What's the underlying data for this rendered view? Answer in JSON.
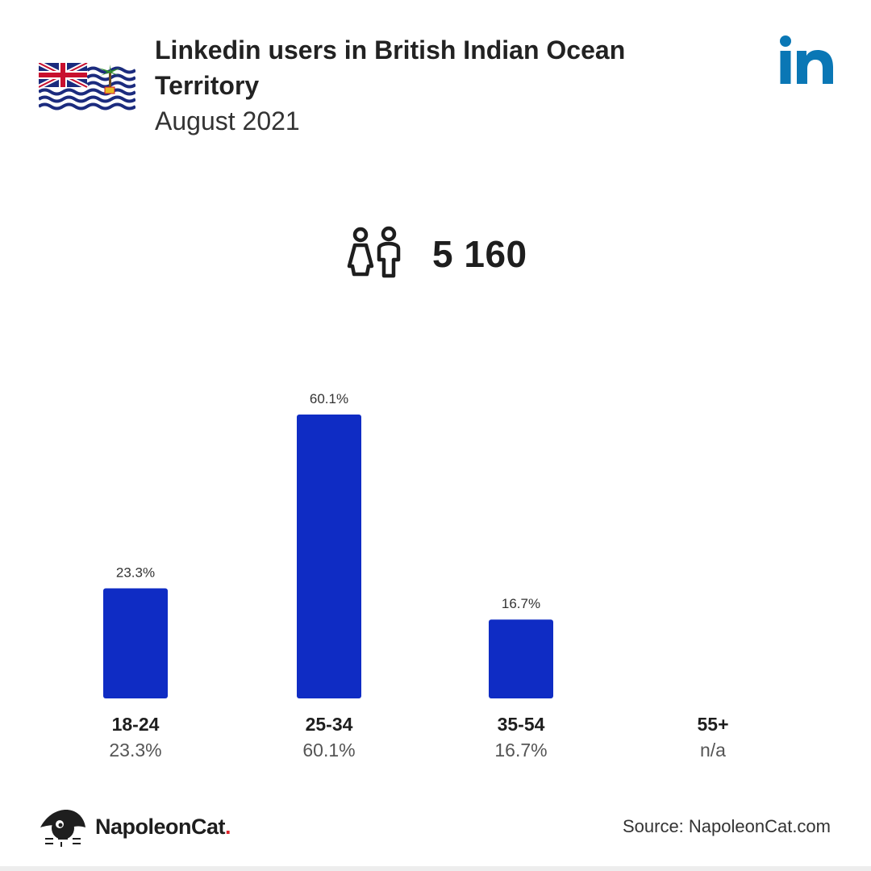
{
  "header": {
    "title": "Linkedin users in British Indian Ocean Territory",
    "subtitle": "August 2021"
  },
  "total": {
    "value": "5 160",
    "icon": "people-icon"
  },
  "chart_data": {
    "type": "bar",
    "categories": [
      "18-24",
      "25-34",
      "35-54",
      "55+"
    ],
    "values": [
      23.3,
      60.1,
      16.7,
      null
    ],
    "value_labels": [
      "23.3%",
      "60.1%",
      "16.7%",
      "n/a"
    ],
    "ylim": [
      0,
      60.1
    ],
    "bar_color": "#0f2cc4",
    "grid": false
  },
  "footer": {
    "brand_name": "NapoleonCat",
    "brand_dot": ".",
    "source": "Source: NapoleonCat.com"
  },
  "colors": {
    "accent": "#0f2cc4",
    "linkedin_blue": "#0a77b5",
    "brand_dot": "#e0262c"
  }
}
